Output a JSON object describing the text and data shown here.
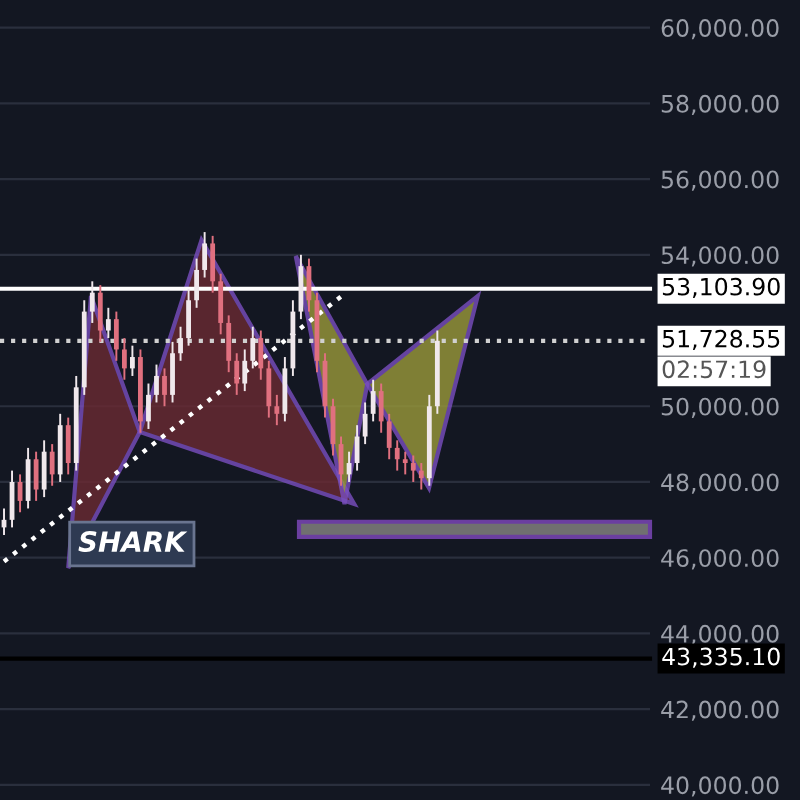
{
  "chart_data": {
    "type": "candlestick",
    "categories": [
      null,
      null,
      null,
      null,
      null,
      null,
      null,
      null,
      null,
      null,
      null,
      null,
      null,
      null,
      null,
      null,
      null,
      null,
      null,
      null,
      null,
      null,
      null,
      null,
      null,
      null,
      null,
      null,
      null,
      null,
      null,
      null,
      null,
      null,
      null,
      null,
      null,
      null,
      null,
      null,
      null,
      null,
      null,
      null,
      null,
      null,
      null,
      null,
      null,
      null,
      null,
      null,
      null,
      null,
      null,
      null,
      null,
      null,
      null,
      null,
      null,
      null,
      null,
      null,
      null,
      null,
      null,
      null,
      null,
      null,
      null,
      null,
      null,
      null,
      null,
      null,
      null,
      null,
      null,
      null,
      null
    ],
    "ohlc": [
      [
        46800,
        47300,
        46600,
        47000
      ],
      [
        47000,
        48300,
        46800,
        48000
      ],
      [
        48000,
        48200,
        47200,
        47500
      ],
      [
        47500,
        48900,
        47300,
        48600
      ],
      [
        48600,
        48800,
        47500,
        47800
      ],
      [
        47800,
        49100,
        47600,
        48800
      ],
      [
        48800,
        49000,
        47900,
        48200
      ],
      [
        48200,
        49800,
        48000,
        49500
      ],
      [
        49500,
        49700,
        48200,
        48500
      ],
      [
        48500,
        50800,
        48300,
        50500
      ],
      [
        50500,
        52800,
        50300,
        52500
      ],
      [
        52500,
        53300,
        52200,
        53000
      ],
      [
        53000,
        53200,
        51700,
        52000
      ],
      [
        52000,
        52600,
        51800,
        52300
      ],
      [
        52300,
        52500,
        51200,
        51500
      ],
      [
        51500,
        51800,
        50700,
        51000
      ],
      [
        51000,
        51600,
        50800,
        51300
      ],
      [
        51300,
        51500,
        49300,
        49600
      ],
      [
        49600,
        50600,
        49400,
        50300
      ],
      [
        50300,
        51100,
        50100,
        50800
      ],
      [
        50800,
        51000,
        50000,
        50300
      ],
      [
        50300,
        51700,
        50100,
        51400
      ],
      [
        51400,
        52100,
        51200,
        51800
      ],
      [
        51800,
        53100,
        51600,
        52800
      ],
      [
        52800,
        53900,
        52600,
        53600
      ],
      [
        53600,
        54600,
        53400,
        54300
      ],
      [
        54300,
        54500,
        53000,
        53300
      ],
      [
        53300,
        53500,
        51900,
        52200
      ],
      [
        52200,
        52400,
        50900,
        51200
      ],
      [
        51200,
        51400,
        50300,
        50600
      ],
      [
        50600,
        51500,
        50400,
        51200
      ],
      [
        51200,
        52100,
        51000,
        51800
      ],
      [
        51800,
        52000,
        50700,
        51000
      ],
      [
        51000,
        51200,
        49700,
        50000
      ],
      [
        50000,
        50300,
        49500,
        49800
      ],
      [
        49800,
        51300,
        49600,
        51000
      ],
      [
        51000,
        52800,
        50800,
        52500
      ],
      [
        52500,
        54000,
        52300,
        53700
      ],
      [
        53700,
        53900,
        52500,
        52800
      ],
      [
        52800,
        53000,
        50900,
        51200
      ],
      [
        51200,
        51400,
        49700,
        50000
      ],
      [
        50000,
        50200,
        48700,
        49000
      ],
      [
        49000,
        49200,
        47900,
        48200
      ],
      [
        48200,
        48800,
        48000,
        48500
      ],
      [
        48500,
        49500,
        48300,
        49200
      ],
      [
        49200,
        50100,
        49000,
        49800
      ],
      [
        49800,
        50700,
        49600,
        50400
      ],
      [
        50400,
        50600,
        49300,
        49600
      ],
      [
        49600,
        49800,
        48600,
        48900
      ],
      [
        48900,
        49100,
        48300,
        48600
      ],
      [
        48600,
        48800,
        48200,
        48500
      ],
      [
        48500,
        48700,
        48000,
        48300
      ],
      [
        48300,
        48500,
        47800,
        48100
      ],
      [
        48100,
        50300,
        47900,
        50000
      ],
      [
        50000,
        52000,
        49800,
        51728.55
      ],
      null,
      null,
      null,
      null,
      null,
      null,
      null,
      null,
      null,
      null,
      null,
      null,
      null,
      null,
      null,
      null,
      null,
      null,
      null,
      null,
      null,
      null,
      null,
      null,
      null,
      null
    ],
    "series": [
      {
        "type": "line",
        "color": "#ffffff",
        "line_style": "dotted",
        "values": [
          45900,
          null,
          null,
          null,
          null,
          null,
          null,
          null,
          null,
          null,
          null,
          null,
          null,
          null,
          null,
          null,
          null,
          null,
          null,
          null,
          null,
          null,
          null,
          null,
          null,
          null,
          null,
          null,
          null,
          null,
          null,
          null,
          null,
          null,
          null,
          null,
          null,
          null,
          null,
          null,
          null,
          null,
          52900,
          null,
          null,
          null,
          null,
          null,
          null,
          null,
          null,
          null,
          null,
          null,
          null,
          null,
          null,
          null,
          null,
          null,
          null,
          null,
          null,
          null,
          null,
          null,
          null,
          null,
          null,
          null,
          null,
          null,
          null,
          null,
          null,
          null,
          null,
          null,
          null,
          null,
          null
        ]
      }
    ],
    "ylim": [
      39600,
      60730
    ],
    "yticks": [
      {
        "value": 40000,
        "label": "40,000.00"
      },
      {
        "value": 42000,
        "label": "42,000.00"
      },
      {
        "value": 44000,
        "label": "44,000.00"
      },
      {
        "value": 46000,
        "label": "46,000.00"
      },
      {
        "value": 48000,
        "label": "48,000.00"
      },
      {
        "value": 50000,
        "label": "50,000.00"
      },
      {
        "value": 54000,
        "label": "54,000.00"
      },
      {
        "value": 56000,
        "label": "56,000.00"
      },
      {
        "value": 58000,
        "label": "58,000.00"
      },
      {
        "value": 60000,
        "label": "60,000.00"
      }
    ],
    "tick_labels": "y",
    "grid": true,
    "ref_lines": [
      {
        "axis": "y",
        "value": 53103.9,
        "label": "53,103.90",
        "color": "#ffffff",
        "line_style": "solid"
      },
      {
        "axis": "y",
        "value": 51728.55,
        "label": "51,728.55",
        "color": "#d0d0d0",
        "line_style": "dotted"
      },
      {
        "axis": "y",
        "value": 43335.1,
        "label": "43,335.10",
        "color": "#000000",
        "line_style": "solid"
      }
    ],
    "bands": [
      {
        "axis": "y",
        "from": 46550,
        "to": 46950,
        "color": "#707070"
      }
    ],
    "annotations": [
      "SHARK",
      "02:57:19"
    ]
  }
}
